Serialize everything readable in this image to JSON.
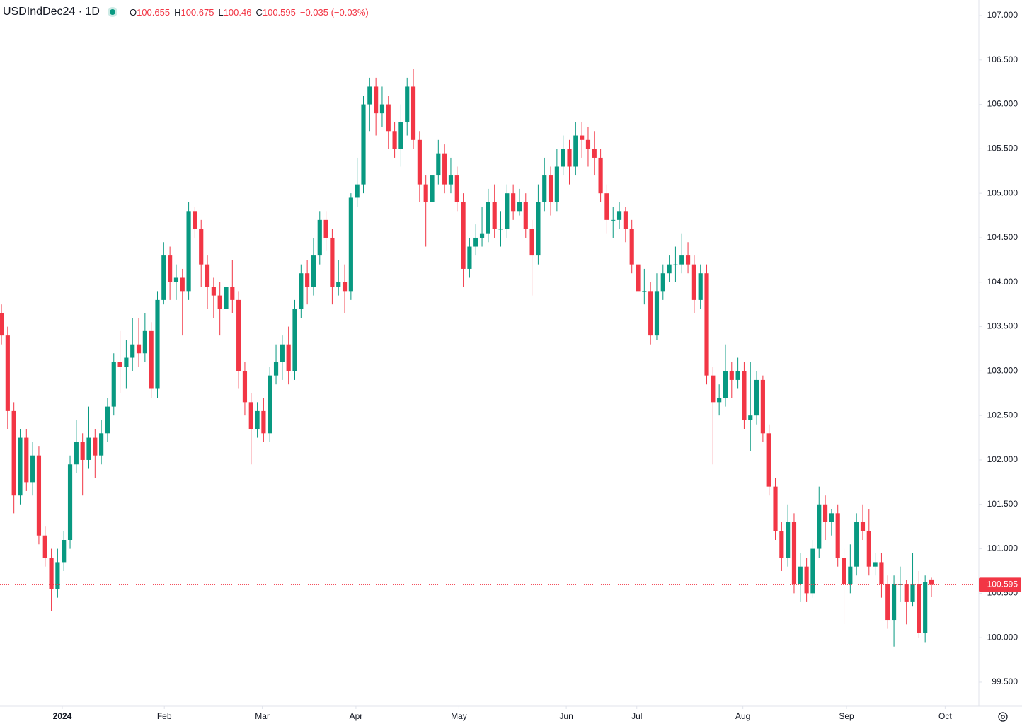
{
  "chart_data": {
    "type": "candlestick",
    "title": "USDIndDec24 · 1D",
    "ohlc_labels": [
      "O",
      "H",
      "L",
      "C"
    ],
    "change": "−0.035 (−0.03%)",
    "up_color": "#089981",
    "down_color": "#f23645",
    "grid": false,
    "open": [
      103.65,
      103.4,
      102.55,
      101.6,
      102.25,
      101.75,
      102.05,
      101.15,
      100.9,
      100.55,
      100.85,
      101.1,
      101.95,
      102.2,
      102.0,
      102.25,
      102.05,
      102.3,
      102.6,
      103.1,
      103.05,
      103.15,
      103.3,
      103.2,
      103.45,
      102.8,
      103.8,
      104.3,
      104.0,
      104.05,
      103.9,
      104.8,
      104.6,
      104.2,
      103.95,
      103.85,
      103.7,
      103.95,
      103.8,
      103.0,
      102.65,
      102.35,
      102.55,
      102.3,
      102.95,
      103.1,
      103.3,
      103.0,
      103.7,
      104.1,
      103.95,
      104.3,
      104.7,
      104.5,
      103.95,
      104.0,
      103.9,
      104.95,
      105.1,
      106.0,
      106.2,
      105.9,
      106.0,
      105.7,
      105.5,
      105.8,
      106.2,
      105.6,
      105.1,
      104.9,
      105.2,
      105.45,
      105.1,
      105.2,
      104.9,
      104.15,
      104.4,
      104.5,
      104.55,
      104.9,
      104.6,
      104.6,
      105.0,
      104.8,
      104.9,
      104.6,
      104.3,
      104.9,
      105.2,
      104.9,
      105.3,
      105.5,
      105.3,
      105.65,
      105.6,
      105.5,
      105.4,
      105.0,
      104.7,
      104.7,
      104.8,
      104.6,
      104.2,
      103.9,
      103.9,
      103.4,
      103.9,
      104.1,
      104.2,
      104.2,
      104.3,
      104.2,
      103.8,
      104.1,
      102.95,
      102.65,
      102.7,
      103.0,
      102.9,
      103.0,
      102.45,
      102.5,
      102.9,
      102.3,
      101.7,
      101.2,
      100.9,
      101.3,
      100.6,
      100.8,
      100.5,
      101.0,
      101.5,
      101.3,
      101.4,
      100.9,
      100.6,
      100.8,
      101.3,
      101.2,
      100.8,
      100.85,
      100.6,
      100.2,
      100.6,
      100.6,
      100.4,
      100.6,
      100.05,
      100.655
    ],
    "high": [
      103.75,
      103.5,
      102.65,
      102.35,
      102.35,
      102.2,
      102.15,
      101.25,
      101.0,
      101.0,
      101.2,
      102.05,
      102.45,
      102.3,
      102.6,
      102.35,
      102.45,
      102.7,
      103.2,
      103.45,
      103.35,
      103.6,
      103.6,
      103.65,
      103.55,
      103.9,
      104.45,
      104.4,
      104.2,
      104.15,
      104.9,
      104.85,
      104.7,
      104.3,
      104.05,
      104.0,
      104.2,
      104.25,
      103.9,
      103.1,
      102.75,
      102.65,
      102.7,
      103.05,
      103.3,
      103.4,
      103.5,
      103.8,
      104.2,
      104.25,
      104.5,
      104.8,
      104.8,
      104.6,
      104.25,
      104.2,
      105.0,
      105.4,
      106.1,
      106.3,
      106.3,
      106.2,
      106.1,
      105.8,
      106.0,
      106.3,
      106.4,
      105.7,
      105.2,
      105.4,
      105.6,
      105.55,
      105.4,
      105.3,
      105.0,
      104.5,
      104.65,
      104.85,
      105.05,
      105.1,
      104.8,
      105.1,
      105.1,
      105.05,
      105.0,
      104.7,
      105.1,
      105.4,
      105.3,
      105.5,
      105.65,
      105.6,
      105.8,
      105.8,
      105.75,
      105.7,
      105.5,
      105.1,
      104.85,
      104.9,
      104.85,
      104.7,
      104.25,
      104.15,
      104.0,
      104.1,
      104.2,
      104.3,
      104.4,
      104.55,
      104.45,
      104.3,
      104.2,
      104.2,
      103.05,
      102.85,
      103.3,
      103.1,
      103.15,
      103.1,
      103.1,
      103.0,
      102.95,
      102.4,
      101.8,
      101.3,
      101.5,
      101.4,
      100.95,
      100.9,
      101.1,
      101.7,
      101.6,
      101.45,
      101.5,
      101.0,
      101.05,
      101.4,
      101.5,
      101.45,
      100.95,
      100.95,
      100.7,
      100.7,
      100.8,
      100.65,
      100.95,
      100.75,
      100.7,
      100.675
    ],
    "low": [
      103.3,
      102.35,
      101.4,
      101.5,
      101.65,
      101.6,
      101.05,
      100.8,
      100.3,
      100.45,
      100.75,
      101.0,
      101.85,
      101.6,
      101.9,
      101.8,
      101.95,
      102.2,
      102.5,
      102.75,
      102.8,
      103.0,
      103.05,
      103.1,
      102.7,
      102.7,
      103.75,
      103.8,
      103.8,
      103.4,
      103.8,
      104.5,
      103.95,
      103.7,
      103.6,
      103.4,
      103.6,
      103.65,
      102.8,
      102.5,
      101.95,
      102.25,
      102.2,
      102.2,
      102.85,
      102.9,
      102.85,
      102.9,
      103.6,
      103.75,
      103.85,
      104.2,
      104.35,
      103.75,
      103.85,
      103.65,
      103.8,
      104.85,
      105.0,
      105.7,
      105.65,
      105.75,
      105.5,
      105.4,
      105.3,
      105.65,
      105.5,
      104.9,
      104.4,
      104.8,
      105.1,
      105.0,
      105.0,
      104.8,
      103.95,
      104.05,
      104.3,
      104.4,
      104.45,
      104.5,
      104.4,
      104.5,
      104.7,
      104.75,
      104.5,
      103.85,
      104.2,
      104.8,
      104.75,
      104.8,
      105.2,
      105.1,
      105.2,
      105.4,
      105.3,
      105.2,
      104.9,
      104.55,
      104.5,
      104.6,
      104.45,
      104.1,
      103.8,
      103.75,
      103.3,
      103.35,
      103.8,
      104.0,
      104.0,
      104.1,
      104.1,
      103.65,
      103.7,
      102.85,
      101.95,
      102.5,
      102.6,
      102.7,
      102.8,
      102.35,
      102.1,
      102.4,
      102.2,
      101.6,
      101.1,
      100.75,
      100.8,
      100.5,
      100.4,
      100.4,
      100.45,
      100.9,
      101.1,
      101.15,
      100.8,
      100.15,
      100.5,
      100.7,
      101.1,
      100.7,
      100.7,
      100.45,
      100.1,
      99.9,
      100.4,
      100.15,
      100.35,
      100.0,
      99.95,
      100.46
    ],
    "close": [
      103.4,
      102.55,
      101.6,
      102.25,
      101.75,
      102.05,
      101.15,
      100.9,
      100.55,
      100.85,
      101.1,
      101.95,
      102.2,
      102.0,
      102.25,
      102.05,
      102.3,
      102.6,
      103.1,
      103.05,
      103.15,
      103.3,
      103.2,
      103.45,
      102.8,
      103.8,
      104.3,
      104.0,
      104.05,
      103.9,
      104.8,
      104.6,
      104.2,
      103.95,
      103.85,
      103.7,
      103.95,
      103.8,
      103.0,
      102.65,
      102.35,
      102.55,
      102.3,
      102.95,
      103.1,
      103.3,
      103.0,
      103.7,
      104.1,
      103.95,
      104.3,
      104.7,
      104.5,
      103.95,
      104.0,
      103.9,
      104.95,
      105.1,
      106.0,
      106.2,
      105.9,
      106.0,
      105.7,
      105.5,
      105.8,
      106.2,
      105.6,
      105.1,
      104.9,
      105.2,
      105.45,
      105.1,
      105.2,
      104.9,
      104.15,
      104.4,
      104.5,
      104.55,
      104.9,
      104.6,
      104.6,
      105.0,
      104.8,
      104.9,
      104.6,
      104.3,
      104.9,
      105.2,
      104.9,
      105.3,
      105.5,
      105.3,
      105.65,
      105.6,
      105.5,
      105.4,
      105.0,
      104.7,
      104.7,
      104.8,
      104.6,
      104.2,
      103.9,
      103.9,
      103.4,
      103.9,
      104.1,
      104.2,
      104.2,
      104.3,
      104.2,
      103.8,
      104.1,
      102.95,
      102.65,
      102.7,
      103.0,
      102.9,
      103.0,
      102.45,
      102.5,
      102.9,
      102.3,
      101.7,
      101.2,
      100.9,
      101.3,
      100.6,
      100.8,
      100.5,
      101.0,
      101.5,
      101.3,
      101.4,
      100.9,
      100.6,
      100.8,
      101.3,
      101.2,
      100.8,
      100.85,
      100.6,
      100.2,
      100.6,
      100.6,
      100.4,
      100.6,
      100.05,
      100.63,
      100.595
    ],
    "xlim": [
      -0.23,
      156.6
    ],
    "xticks": [
      {
        "value": 9.75,
        "label": "2024"
      },
      {
        "value": 26.1,
        "label": "Feb"
      },
      {
        "value": 41.8,
        "label": "Mar"
      },
      {
        "value": 56.8,
        "label": "Apr"
      },
      {
        "value": 73.3,
        "label": "May"
      },
      {
        "value": 90.5,
        "label": "Jun"
      },
      {
        "value": 101.8,
        "label": "Jul"
      },
      {
        "value": 118.8,
        "label": "Aug"
      },
      {
        "value": 135.4,
        "label": "Sep"
      },
      {
        "value": 151.2,
        "label": "Oct"
      }
    ],
    "ylim": [
      99.229,
      107.175
    ],
    "yticks": [
      {
        "value": 99.5,
        "label": "99.500"
      },
      {
        "value": 100,
        "label": "100.000"
      },
      {
        "value": 100.5,
        "label": "100.500"
      },
      {
        "value": 101,
        "label": "101.000"
      },
      {
        "value": 101.5,
        "label": "101.500"
      },
      {
        "value": 102,
        "label": "102.000"
      },
      {
        "value": 102.5,
        "label": "102.500"
      },
      {
        "value": 103,
        "label": "103.000"
      },
      {
        "value": 103.5,
        "label": "103.500"
      },
      {
        "value": 104,
        "label": "104.000"
      },
      {
        "value": 104.5,
        "label": "104.500"
      },
      {
        "value": 105,
        "label": "105.000"
      },
      {
        "value": 105.5,
        "label": "105.500"
      },
      {
        "value": 106,
        "label": "106.000"
      },
      {
        "value": 106.5,
        "label": "106.500"
      },
      {
        "value": 107,
        "label": "107.000"
      }
    ]
  }
}
